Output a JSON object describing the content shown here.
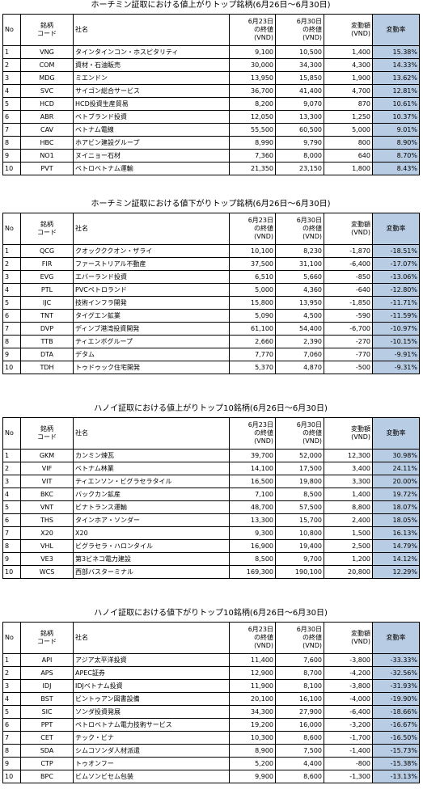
{
  "tables": [
    {
      "title": "ホーチミン証取における値上がりトップ銘柄(6月26日～6月30日)",
      "headers": [
        "No",
        "銘柄\nコード",
        "社名",
        "6月23日\nの終値\n(VND)",
        "6月30日\nの終値\n(VND)",
        "変動額\n(VND)",
        "変動率"
      ],
      "rows": [
        [
          "1",
          "VNG",
          "タインタインコン・ホスピタリティ",
          "9,100",
          "10,500",
          "1,400",
          "15.38%"
        ],
        [
          "2",
          "COM",
          "資材・石油販売",
          "30,000",
          "34,300",
          "4,300",
          "14.33%"
        ],
        [
          "3",
          "MDG",
          "ミエンドン",
          "13,950",
          "15,850",
          "1,900",
          "13.62%"
        ],
        [
          "4",
          "SVC",
          "サイゴン総合サービス",
          "36,700",
          "41,400",
          "4,700",
          "12.81%"
        ],
        [
          "5",
          "HCD",
          "HCD投資生産貿易",
          "8,200",
          "9,070",
          "870",
          "10.61%"
        ],
        [
          "6",
          "ABR",
          "ベトブランド投資",
          "12,050",
          "13,300",
          "1,250",
          "10.37%"
        ],
        [
          "7",
          "CAV",
          "ベトナム電線",
          "55,500",
          "60,500",
          "5,000",
          "9.01%"
        ],
        [
          "8",
          "HBC",
          "ホアビン建設グループ",
          "8,990",
          "9,790",
          "800",
          "8.90%"
        ],
        [
          "9",
          "NO1",
          "ヌイニョー石材",
          "7,360",
          "8,000",
          "640",
          "8.70%"
        ],
        [
          "10",
          "PVT",
          "ペトロベトナム運輸",
          "21,350",
          "23,150",
          "1,800",
          "8.43%"
        ]
      ]
    },
    {
      "title": "ホーチミン証取における値下がりトップ銘柄(6月26日～6月30日)",
      "headers": [
        "No",
        "銘柄\nコード",
        "社名",
        "6月23日\nの終値\n(VND)",
        "6月30日\nの終値\n(VND)",
        "変動額\n(VND)",
        "変動率"
      ],
      "rows": [
        [
          "1",
          "QCG",
          "クオックククオン・ザライ",
          "10,100",
          "8,230",
          "-1,870",
          "-18.51%"
        ],
        [
          "2",
          "FIR",
          "ファーストリアル不動産",
          "37,500",
          "31,100",
          "-6,400",
          "-17.07%"
        ],
        [
          "3",
          "EVG",
          "エバーランド投資",
          "6,510",
          "5,660",
          "-850",
          "-13.06%"
        ],
        [
          "4",
          "PTL",
          "PVCペトロランド",
          "5,000",
          "4,360",
          "-640",
          "-12.80%"
        ],
        [
          "5",
          "IJC",
          "技術インフラ開発",
          "15,800",
          "13,950",
          "-1,850",
          "-11.71%"
        ],
        [
          "6",
          "TNT",
          "タイグエン鉱業",
          "5,090",
          "4,500",
          "-590",
          "-11.59%"
        ],
        [
          "7",
          "DVP",
          "ディンブ港湾投資開発",
          "61,100",
          "54,400",
          "-6,700",
          "-10.97%"
        ],
        [
          "8",
          "TTB",
          "ティエンボグループ",
          "2,660",
          "2,390",
          "-270",
          "-10.15%"
        ],
        [
          "9",
          "DTA",
          "デタム",
          "7,770",
          "7,060",
          "-770",
          "-9.91%"
        ],
        [
          "10",
          "TDH",
          "トゥドゥック住宅開発",
          "5,370",
          "4,870",
          "-500",
          "-9.31%"
        ]
      ]
    },
    {
      "title": "ハノイ証取における値上がりトップ10銘柄(6月26日～6月30日)",
      "headers": [
        "No",
        "銘柄\nコード",
        "社名",
        "6月23日\nの終値\n(VND)",
        "6月30日\nの終値\n(VND)",
        "変動額\n(VND)",
        "変動率"
      ],
      "rows": [
        [
          "1",
          "GKM",
          "カンミン煉瓦",
          "39,700",
          "52,000",
          "12,300",
          "30.98%"
        ],
        [
          "2",
          "VIF",
          "ベトナム林業",
          "14,100",
          "17,500",
          "3,400",
          "24.11%"
        ],
        [
          "3",
          "VIT",
          "ティエンソン・ビグラセラタイル",
          "16,500",
          "19,800",
          "3,300",
          "20.00%"
        ],
        [
          "4",
          "BKC",
          "バックカン鉱産",
          "7,100",
          "8,500",
          "1,400",
          "19.72%"
        ],
        [
          "5",
          "VNT",
          "ビナトランス運輸",
          "48,700",
          "57,500",
          "8,800",
          "18.07%"
        ],
        [
          "6",
          "THS",
          "タインホア・ソンダー",
          "13,300",
          "15,700",
          "2,400",
          "18.05%"
        ],
        [
          "7",
          "X20",
          "X20",
          "9,300",
          "10,800",
          "1,500",
          "16.13%"
        ],
        [
          "8",
          "VHL",
          "ビグラセラ・ハロンタイル",
          "16,900",
          "19,400",
          "2,500",
          "14.79%"
        ],
        [
          "9",
          "VE3",
          "第3ビネコ電力建設",
          "8,500",
          "9,700",
          "1,200",
          "14.12%"
        ],
        [
          "10",
          "WCS",
          "西部バスターミナル",
          "169,300",
          "190,100",
          "20,800",
          "12.29%"
        ]
      ]
    },
    {
      "title": "ハノイ証取における値下がりトップ10銘柄(6月26日～6月30日)",
      "headers": [
        "No",
        "銘柄\nコード",
        "社名",
        "6月23日\nの終値\n(VND)",
        "6月30日\nの終値\n(VND)",
        "変動額\n(VND)",
        "変動率"
      ],
      "rows": [
        [
          "1",
          "API",
          "アジア太平洋投資",
          "11,400",
          "7,600",
          "-3,800",
          "-33.33%"
        ],
        [
          "2",
          "APS",
          "APEC証券",
          "12,900",
          "8,700",
          "-4,200",
          "-32.56%"
        ],
        [
          "3",
          "IDJ",
          "IDJベトナム投資",
          "11,900",
          "8,100",
          "-3,800",
          "-31.93%"
        ],
        [
          "4",
          "BST",
          "ビントゥアン図書設備",
          "20,100",
          "16,100",
          "-4,000",
          "-19.90%"
        ],
        [
          "5",
          "SIC",
          "ソンダ投資発展",
          "34,300",
          "27,900",
          "-6,400",
          "-18.66%"
        ],
        [
          "6",
          "PPT",
          "ペトロベトナム電力技術サービス",
          "19,200",
          "16,000",
          "-3,200",
          "-16.67%"
        ],
        [
          "7",
          "CET",
          "テック・ビナ",
          "10,300",
          "8,600",
          "-1,700",
          "-16.50%"
        ],
        [
          "8",
          "SDA",
          "シムコソンダ人材派遣",
          "8,900",
          "7,500",
          "-1,400",
          "-15.73%"
        ],
        [
          "9",
          "CTP",
          "トゥオンフー",
          "5,200",
          "4,400",
          "-800",
          "-15.38%"
        ],
        [
          "10",
          "BPC",
          "ビムソンビセム包装",
          "9,900",
          "8,600",
          "-1,300",
          "-13.13%"
        ]
      ]
    }
  ]
}
